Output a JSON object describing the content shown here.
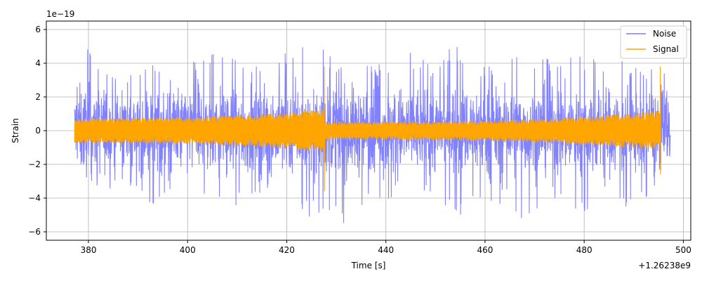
{
  "chart_data": {
    "type": "line",
    "title": "",
    "xlabel": "Time [s]",
    "ylabel": "Strain",
    "x_offset_label": "+1.26238e9",
    "y_scale_label": "1e−19",
    "xlim": [
      371.5,
      501.5
    ],
    "ylim": [
      -6.5,
      6.5
    ],
    "x_ticks": [
      380,
      400,
      420,
      440,
      460,
      480,
      500
    ],
    "x_tick_labels": [
      "380",
      "400",
      "420",
      "440",
      "460",
      "480",
      "500"
    ],
    "y_ticks": [
      -6,
      -4,
      -2,
      0,
      2,
      4,
      6
    ],
    "y_tick_labels": [
      "−6",
      "−4",
      "−2",
      "0",
      "2",
      "4",
      "6"
    ],
    "grid": true,
    "legend_position": "top-right",
    "x_range": [
      377.2,
      497.4
    ],
    "series": [
      {
        "name": "Noise",
        "color": "#7b7bff",
        "typical_envelope": 2.3,
        "peak_envelope": [
          [
            377.5,
            3.0
          ],
          [
            378.9,
            4.3
          ],
          [
            379.6,
            4.9
          ],
          [
            381.2,
            4.4
          ],
          [
            383.1,
            4.4
          ],
          [
            385.0,
            3.6
          ],
          [
            386.0,
            2.4
          ],
          [
            390.5,
            4.4
          ],
          [
            392.5,
            4.0
          ],
          [
            394.5,
            4.7
          ],
          [
            396.3,
            4.9
          ],
          [
            398.0,
            4.4
          ],
          [
            401.5,
            4.4
          ],
          [
            403.5,
            4.6
          ],
          [
            405.0,
            4.7
          ],
          [
            408.5,
            4.8
          ],
          [
            410.0,
            4.7
          ],
          [
            412.5,
            4.0
          ],
          [
            415.0,
            4.3
          ],
          [
            417.0,
            4.7
          ],
          [
            421.0,
            4.6
          ],
          [
            424.0,
            5.1
          ],
          [
            427.5,
            4.8
          ],
          [
            431.0,
            4.1
          ],
          [
            434.0,
            4.4
          ],
          [
            437.0,
            4.5
          ],
          [
            440.0,
            3.8
          ],
          [
            443.0,
            4.3
          ],
          [
            446.0,
            4.9
          ],
          [
            449.0,
            3.8
          ],
          [
            453.5,
            5.7
          ],
          [
            457.5,
            4.0
          ],
          [
            461.0,
            4.1
          ],
          [
            464.0,
            4.4
          ],
          [
            468.5,
            5.2
          ],
          [
            470.5,
            4.4
          ],
          [
            474.0,
            4.5
          ],
          [
            477.5,
            4.7
          ],
          [
            481.5,
            4.4
          ],
          [
            485.0,
            4.4
          ],
          [
            489.5,
            4.1
          ],
          [
            493.5,
            4.1
          ],
          [
            496.5,
            3.4
          ]
        ],
        "trough_envelope": [
          [
            377.5,
            -1.3
          ],
          [
            378.9,
            -3.3
          ],
          [
            379.6,
            -4.3
          ],
          [
            381.2,
            -3.5
          ],
          [
            383.1,
            -3.9
          ],
          [
            385.0,
            -3.2
          ],
          [
            386.0,
            -2.7
          ],
          [
            390.5,
            -3.7
          ],
          [
            392.5,
            -4.4
          ],
          [
            394.5,
            -4.2
          ],
          [
            396.3,
            -3.9
          ],
          [
            398.0,
            -4.1
          ],
          [
            401.5,
            -3.7
          ],
          [
            403.5,
            -4.3
          ],
          [
            405.0,
            -4.0
          ],
          [
            408.5,
            -4.6
          ],
          [
            410.0,
            -4.5
          ],
          [
            412.5,
            -4.2
          ],
          [
            415.0,
            -3.7
          ],
          [
            417.0,
            -3.6
          ],
          [
            421.0,
            -4.4
          ],
          [
            424.0,
            -5.3
          ],
          [
            427.5,
            -4.8
          ],
          [
            431.0,
            -5.8
          ],
          [
            434.0,
            -4.3
          ],
          [
            437.0,
            -4.9
          ],
          [
            440.0,
            -4.3
          ],
          [
            443.0,
            -3.9
          ],
          [
            446.0,
            -4.7
          ],
          [
            449.0,
            -4.0
          ],
          [
            453.5,
            -5.7
          ],
          [
            457.5,
            -4.8
          ],
          [
            461.0,
            -4.7
          ],
          [
            464.0,
            -4.3
          ],
          [
            468.5,
            -5.6
          ],
          [
            470.5,
            -5.2
          ],
          [
            474.0,
            -4.3
          ],
          [
            477.5,
            -5.3
          ],
          [
            481.5,
            -4.9
          ],
          [
            485.0,
            -4.0
          ],
          [
            489.5,
            -4.7
          ],
          [
            493.5,
            -3.9
          ],
          [
            496.5,
            -1.5
          ]
        ]
      },
      {
        "name": "Signal",
        "color": "#ffa500",
        "typical_envelope": 0.8,
        "chirps": [
          {
            "start": 377.2,
            "merger": 427.6,
            "amp_start": 0.75,
            "amp_peak": 1.3,
            "spike": [
              3.8,
              -3.6
            ]
          },
          {
            "start": 427.6,
            "merger": 495.4,
            "amp_start": 0.55,
            "amp_peak": 1.2,
            "spike": [
              3.8,
              -2.6
            ]
          }
        ]
      }
    ]
  }
}
